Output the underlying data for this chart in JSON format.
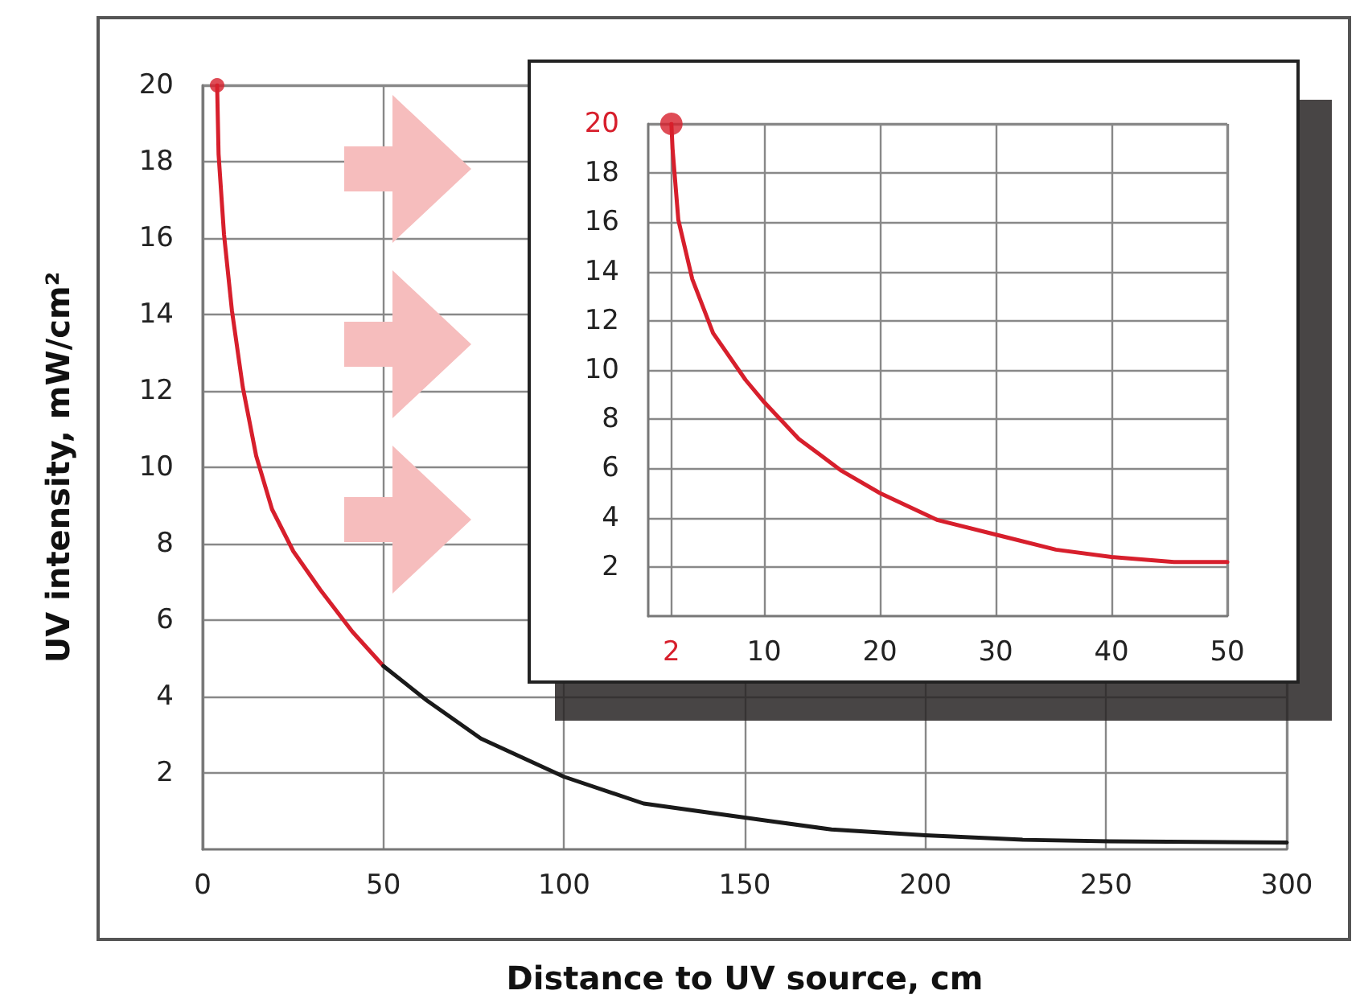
{
  "chart_data": [
    {
      "type": "line",
      "xlabel": "Distance to UV source, cm",
      "ylabel": "UV intensity, mW/cm²",
      "xlim": [
        0,
        300
      ],
      "xticks": [
        0,
        50,
        100,
        150,
        200,
        250,
        300
      ],
      "ylim": [
        0,
        20
      ],
      "yticks": [
        2,
        4,
        6,
        8,
        10,
        12,
        14,
        16,
        18,
        20
      ],
      "grid": true,
      "series": [
        {
          "color": "#d71f2c",
          "x": [
            4,
            4.4,
            5.9,
            8.1,
            11.1,
            14.8,
            19.2,
            25.1,
            32.5,
            41.4,
            50
          ],
          "values": [
            20,
            18.2,
            16.1,
            14.1,
            12.1,
            10.3,
            8.9,
            7.8,
            6.8,
            5.7,
            4.8
          ]
        },
        {
          "color": "#1a1a1a",
          "x": [
            50,
            62,
            77,
            100,
            122,
            150,
            174,
            200,
            227,
            251,
            300
          ],
          "values": [
            4.8,
            3.9,
            2.9,
            1.9,
            1.2,
            0.83,
            0.52,
            0.37,
            0.25,
            0.21,
            0.18
          ]
        },
        {
          "type": "scatter",
          "color": "#d71f2c",
          "x": [
            4
          ],
          "values": [
            20
          ]
        }
      ]
    },
    {
      "type": "line",
      "xlim": [
        0,
        50
      ],
      "xticks": [
        2,
        10,
        20,
        30,
        40,
        50
      ],
      "ylim": [
        0,
        20
      ],
      "yticks": [
        2,
        4,
        6,
        8,
        10,
        12,
        14,
        16,
        18,
        20
      ],
      "grid": true,
      "series": [
        {
          "color": "#d71f2c",
          "x": [
            2,
            2.1,
            2.6,
            3.8,
            5.6,
            8.4,
            10,
            13,
            16.7,
            20,
            25,
            30.1,
            35.2,
            40,
            45.4,
            50
          ],
          "values": [
            20,
            19,
            16.1,
            13.7,
            11.5,
            9.6,
            8.7,
            7.2,
            5.9,
            5,
            3.9,
            3.3,
            2.7,
            2.4,
            2.2,
            2.2
          ]
        },
        {
          "type": "scatter",
          "color": "#d71f2c",
          "x": [
            2
          ],
          "values": [
            20
          ]
        }
      ]
    }
  ]
}
